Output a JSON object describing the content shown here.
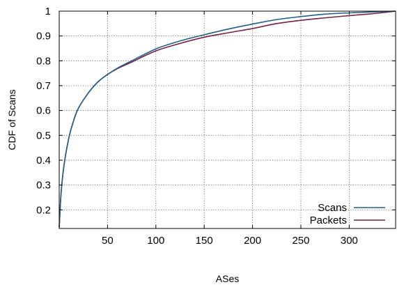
{
  "chart_data": {
    "type": "line",
    "xlabel": "ASes",
    "ylabel": "CDF of Scans",
    "xlim": [
      0,
      348
    ],
    "ylim": [
      0.125,
      1.0
    ],
    "xticks": [
      50,
      100,
      150,
      200,
      250,
      300
    ],
    "yticks": [
      0.2,
      0.3,
      0.4,
      0.5,
      0.6,
      0.7,
      0.8,
      0.9,
      1
    ],
    "xtick_labels": [
      "50",
      "100",
      "150",
      "200",
      "250",
      "300"
    ],
    "ytick_labels": [
      "0.2",
      "0.3",
      "0.4",
      "0.5",
      "0.6",
      "0.7",
      "0.8",
      "0.9",
      "1"
    ],
    "grid": true,
    "legend_position": "bottom-right",
    "series": [
      {
        "name": "Scans",
        "color": "#1f5f8b",
        "x": [
          0,
          2,
          5,
          10,
          15,
          20,
          30,
          40,
          50,
          60,
          75,
          100,
          125,
          150,
          175,
          200,
          225,
          250,
          275,
          300,
          325,
          348
        ],
        "y": [
          0.13,
          0.27,
          0.38,
          0.49,
          0.56,
          0.61,
          0.67,
          0.715,
          0.745,
          0.77,
          0.8,
          0.848,
          0.88,
          0.905,
          0.928,
          0.948,
          0.966,
          0.978,
          0.988,
          0.993,
          0.997,
          1.0
        ]
      },
      {
        "name": "Packets",
        "color": "#7a1f45",
        "x": [
          0,
          2,
          5,
          10,
          15,
          20,
          30,
          40,
          50,
          60,
          75,
          100,
          125,
          150,
          175,
          200,
          225,
          250,
          275,
          300,
          325,
          348
        ],
        "y": [
          0.13,
          0.27,
          0.38,
          0.49,
          0.56,
          0.61,
          0.67,
          0.715,
          0.745,
          0.768,
          0.795,
          0.84,
          0.87,
          0.895,
          0.913,
          0.93,
          0.95,
          0.963,
          0.973,
          0.982,
          0.99,
          1.0
        ]
      }
    ]
  }
}
